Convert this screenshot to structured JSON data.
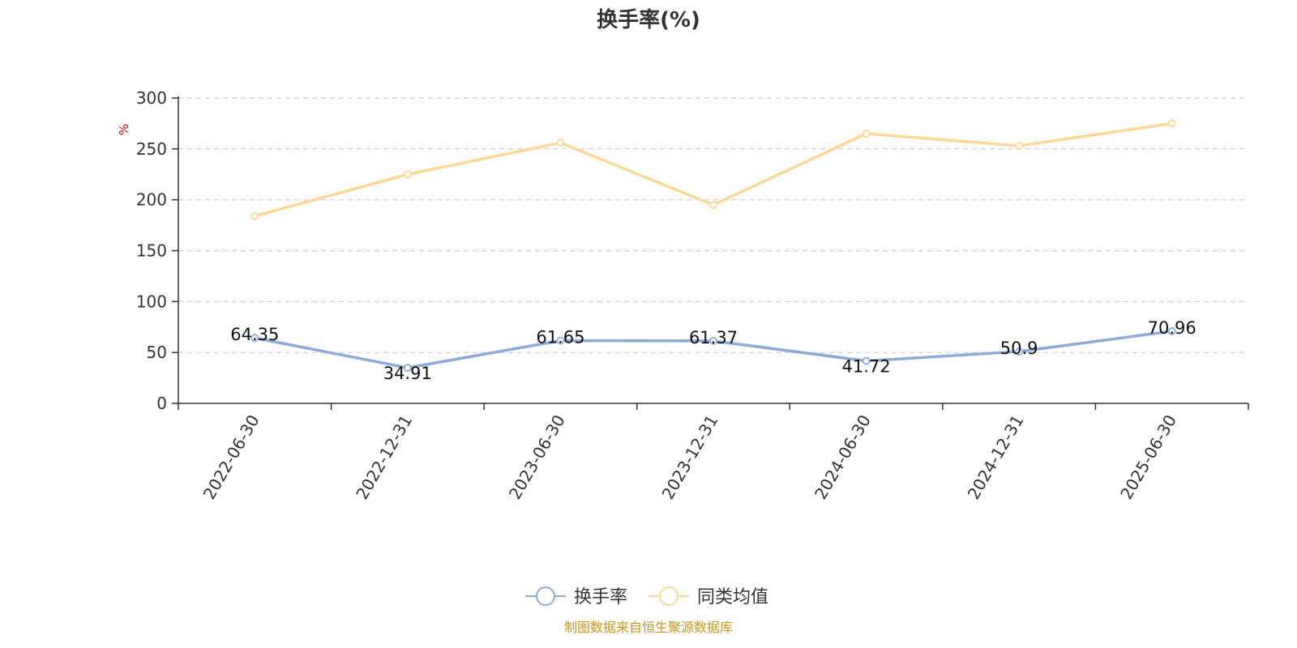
{
  "chart_data": {
    "type": "line",
    "title": "换手率(%)",
    "ylabel": "%",
    "ylim": [
      0,
      300
    ],
    "yticks": [
      0,
      50,
      100,
      150,
      200,
      250,
      300
    ],
    "grid": true,
    "legend_position": "bottom",
    "categories": [
      "2022-06-30",
      "2022-12-31",
      "2023-06-30",
      "2023-12-31",
      "2024-06-30",
      "2024-12-31",
      "2025-06-30"
    ],
    "series": [
      {
        "name": "换手率",
        "color": "#8eaad8",
        "values": [
          64.35,
          34.91,
          61.65,
          61.37,
          41.72,
          50.9,
          70.96
        ],
        "labels": [
          "64.35",
          "34.91",
          "61.65",
          "61.37",
          "41.72",
          "50.9",
          "70.96"
        ]
      },
      {
        "name": "同类均值",
        "color": "#fbd896",
        "values": [
          184,
          225,
          256,
          195,
          265,
          253,
          275
        ]
      }
    ]
  },
  "source": "制图数据来自恒生聚源数据库"
}
